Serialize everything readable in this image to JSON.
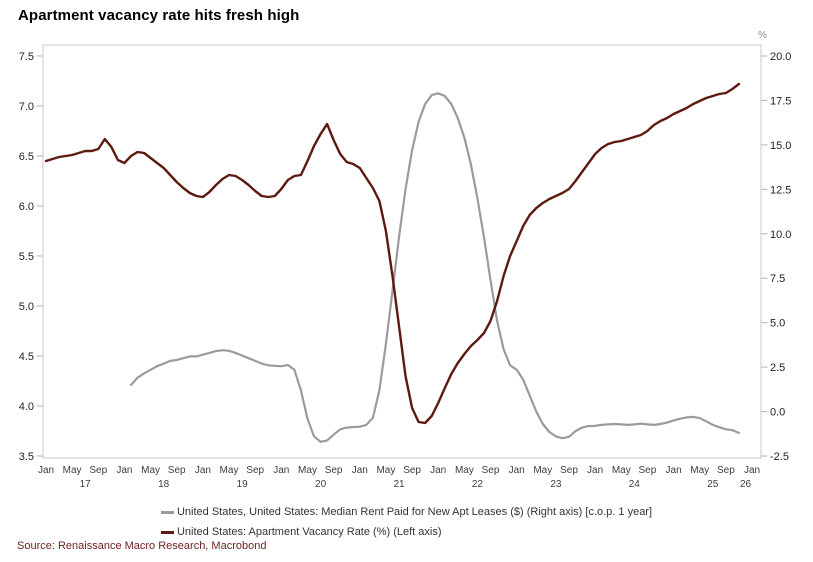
{
  "title": "Apartment vacancy rate hits fresh high",
  "source": "Source: Renaissance Macro Research, Macrobond",
  "colors": {
    "background": "#ffffff",
    "frame": "#c9c9c9",
    "tick": "#b5b5b5",
    "axis_text": "#222222",
    "source_text": "#6e1f1e",
    "rent_line": "#9b9b9b",
    "vacancy_line": "#5d1a11"
  },
  "chart_data": {
    "type": "line",
    "title": "Apartment vacancy rate hits fresh high",
    "grid": false,
    "legend_position": "bottom-center",
    "left_axis": {
      "min": 3.5,
      "max": 7.5,
      "ticks": [
        7.5,
        7.0,
        6.5,
        6.0,
        5.5,
        5.0,
        4.5,
        4.0,
        3.5
      ]
    },
    "right_axis": {
      "unit": "%",
      "min": -2.5,
      "max": 20.0,
      "ticks": [
        20.0,
        17.5,
        15.0,
        12.5,
        10.0,
        7.5,
        5.0,
        2.5,
        0.0,
        -2.5
      ]
    },
    "x_axis": {
      "start": "Jan 2017",
      "end": "Jan 2026",
      "total_months": 108,
      "month_ticks": [
        {
          "label": "Jan",
          "mi": 0
        },
        {
          "label": "May",
          "mi": 4
        },
        {
          "label": "Sep",
          "mi": 8
        },
        {
          "label": "Jan",
          "mi": 12
        },
        {
          "label": "May",
          "mi": 16
        },
        {
          "label": "Sep",
          "mi": 20
        },
        {
          "label": "Jan",
          "mi": 24
        },
        {
          "label": "May",
          "mi": 28
        },
        {
          "label": "Sep",
          "mi": 32
        },
        {
          "label": "Jan",
          "mi": 36
        },
        {
          "label": "May",
          "mi": 40
        },
        {
          "label": "Sep",
          "mi": 44
        },
        {
          "label": "Jan",
          "mi": 48
        },
        {
          "label": "May",
          "mi": 52
        },
        {
          "label": "Sep",
          "mi": 56
        },
        {
          "label": "Jan",
          "mi": 60
        },
        {
          "label": "May",
          "mi": 64
        },
        {
          "label": "Sep",
          "mi": 68
        },
        {
          "label": "Jan",
          "mi": 72
        },
        {
          "label": "May",
          "mi": 76
        },
        {
          "label": "Sep",
          "mi": 80
        },
        {
          "label": "Jan",
          "mi": 84
        },
        {
          "label": "May",
          "mi": 88
        },
        {
          "label": "Sep",
          "mi": 92
        },
        {
          "label": "Jan",
          "mi": 96
        },
        {
          "label": "May",
          "mi": 100
        },
        {
          "label": "Sep",
          "mi": 104
        },
        {
          "label": "Jan",
          "mi": 108
        }
      ],
      "year_ticks": [
        {
          "label": "17",
          "mi": 6
        },
        {
          "label": "18",
          "mi": 18
        },
        {
          "label": "19",
          "mi": 30
        },
        {
          "label": "20",
          "mi": 42
        },
        {
          "label": "21",
          "mi": 54
        },
        {
          "label": "22",
          "mi": 66
        },
        {
          "label": "23",
          "mi": 78
        },
        {
          "label": "24",
          "mi": 90
        },
        {
          "label": "25",
          "mi": 102
        },
        {
          "label": "26",
          "mi": 107
        }
      ]
    },
    "series": [
      {
        "name": "United States, United States: Median Rent Paid for New Apt Leases ($) (Right axis) [c.o.p. 1 year]",
        "axis": "right",
        "color": "#9b9b9b",
        "width": 2.2,
        "start_month_index": 13,
        "values": [
          1.5,
          1.9,
          2.15,
          2.35,
          2.55,
          2.7,
          2.85,
          2.9,
          3.0,
          3.1,
          3.1,
          3.2,
          3.3,
          3.4,
          3.45,
          3.42,
          3.3,
          3.15,
          3.0,
          2.85,
          2.7,
          2.6,
          2.57,
          2.55,
          2.62,
          2.35,
          1.2,
          -0.4,
          -1.4,
          -1.7,
          -1.62,
          -1.3,
          -1.0,
          -0.9,
          -0.87,
          -0.85,
          -0.75,
          -0.35,
          1.2,
          3.8,
          6.8,
          9.8,
          12.5,
          14.7,
          16.3,
          17.3,
          17.8,
          17.9,
          17.75,
          17.3,
          16.5,
          15.4,
          13.9,
          12.0,
          9.8,
          7.4,
          5.1,
          3.5,
          2.6,
          2.35,
          1.8,
          0.9,
          0.0,
          -0.7,
          -1.15,
          -1.4,
          -1.5,
          -1.42,
          -1.1,
          -0.9,
          -0.82,
          -0.8,
          -0.75,
          -0.72,
          -0.7,
          -0.72,
          -0.75,
          -0.72,
          -0.68,
          -0.72,
          -0.75,
          -0.7,
          -0.62,
          -0.5,
          -0.4,
          -0.33,
          -0.3,
          -0.37,
          -0.55,
          -0.75,
          -0.88,
          -1.0,
          -1.05,
          -1.2
        ]
      },
      {
        "name": "United States: Apartment Vacancy Rate (%) (Left axis)",
        "axis": "left",
        "color": "#5d1a11",
        "width": 2.4,
        "start_month_index": 0,
        "values": [
          6.45,
          6.47,
          6.49,
          6.5,
          6.51,
          6.53,
          6.55,
          6.55,
          6.57,
          6.67,
          6.59,
          6.46,
          6.43,
          6.5,
          6.54,
          6.53,
          6.48,
          6.43,
          6.38,
          6.31,
          6.24,
          6.18,
          6.13,
          6.1,
          6.09,
          6.14,
          6.21,
          6.27,
          6.31,
          6.3,
          6.26,
          6.21,
          6.15,
          6.1,
          6.09,
          6.1,
          6.17,
          6.26,
          6.3,
          6.31,
          6.45,
          6.6,
          6.72,
          6.82,
          6.66,
          6.52,
          6.44,
          6.42,
          6.38,
          6.28,
          6.18,
          6.05,
          5.75,
          5.3,
          4.8,
          4.3,
          3.98,
          3.84,
          3.83,
          3.9,
          4.03,
          4.18,
          4.32,
          4.43,
          4.52,
          4.6,
          4.66,
          4.73,
          4.85,
          5.05,
          5.3,
          5.5,
          5.65,
          5.8,
          5.91,
          5.98,
          6.03,
          6.07,
          6.1,
          6.13,
          6.17,
          6.25,
          6.34,
          6.43,
          6.52,
          6.58,
          6.62,
          6.64,
          6.65,
          6.67,
          6.69,
          6.71,
          6.75,
          6.81,
          6.85,
          6.88,
          6.92,
          6.95,
          6.98,
          7.02,
          7.05,
          7.08,
          7.1,
          7.12,
          7.13,
          7.17,
          7.22
        ]
      }
    ]
  }
}
